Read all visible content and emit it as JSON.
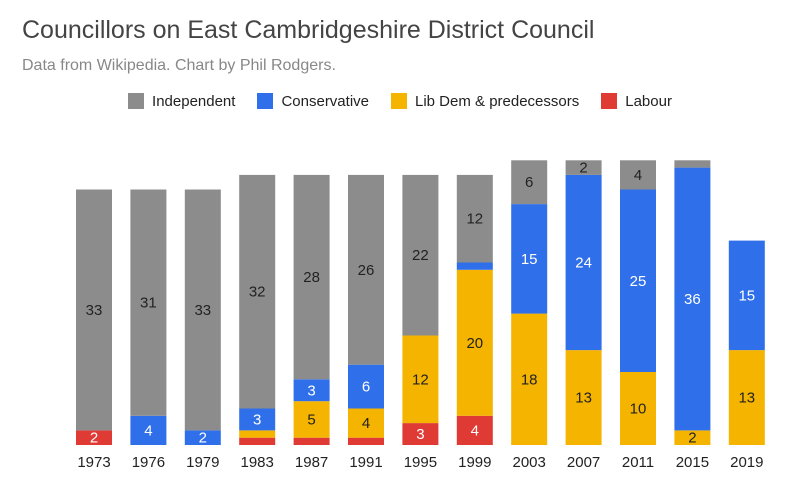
{
  "title": "Councillors on East Cambridgeshire District Council",
  "subtitle": "Data from Wikipedia. Chart by Phil Rodgers.",
  "colors": {
    "Independent": "#8c8c8c",
    "Conservative": "#2f6fea",
    "Lib Dem & predecessors": "#f5b400",
    "Labour": "#e03a35"
  },
  "chart_data": {
    "type": "bar",
    "stacked": true,
    "title": "Councillors on East Cambridgeshire District Council",
    "subtitle": "Data from Wikipedia. Chart by Phil Rodgers.",
    "legend_position": "top",
    "categories": [
      "1973",
      "1976",
      "1979",
      "1983",
      "1987",
      "1991",
      "1995",
      "1999",
      "2003",
      "2007",
      "2011",
      "2015",
      "2019"
    ],
    "series": [
      {
        "name": "Labour",
        "values": [
          2,
          0,
          0,
          1,
          1,
          1,
          3,
          4,
          0,
          0,
          0,
          0,
          0
        ]
      },
      {
        "name": "Lib Dem & predecessors",
        "values": [
          0,
          0,
          0,
          1,
          5,
          4,
          12,
          20,
          18,
          13,
          10,
          2,
          13
        ]
      },
      {
        "name": "Conservative",
        "values": [
          0,
          4,
          2,
          3,
          3,
          6,
          0,
          1,
          15,
          24,
          25,
          36,
          15
        ]
      },
      {
        "name": "Independent",
        "values": [
          33,
          31,
          33,
          32,
          28,
          26,
          22,
          12,
          6,
          2,
          4,
          1,
          0
        ]
      }
    ],
    "ylim": [
      0,
      39
    ],
    "grid": false
  }
}
